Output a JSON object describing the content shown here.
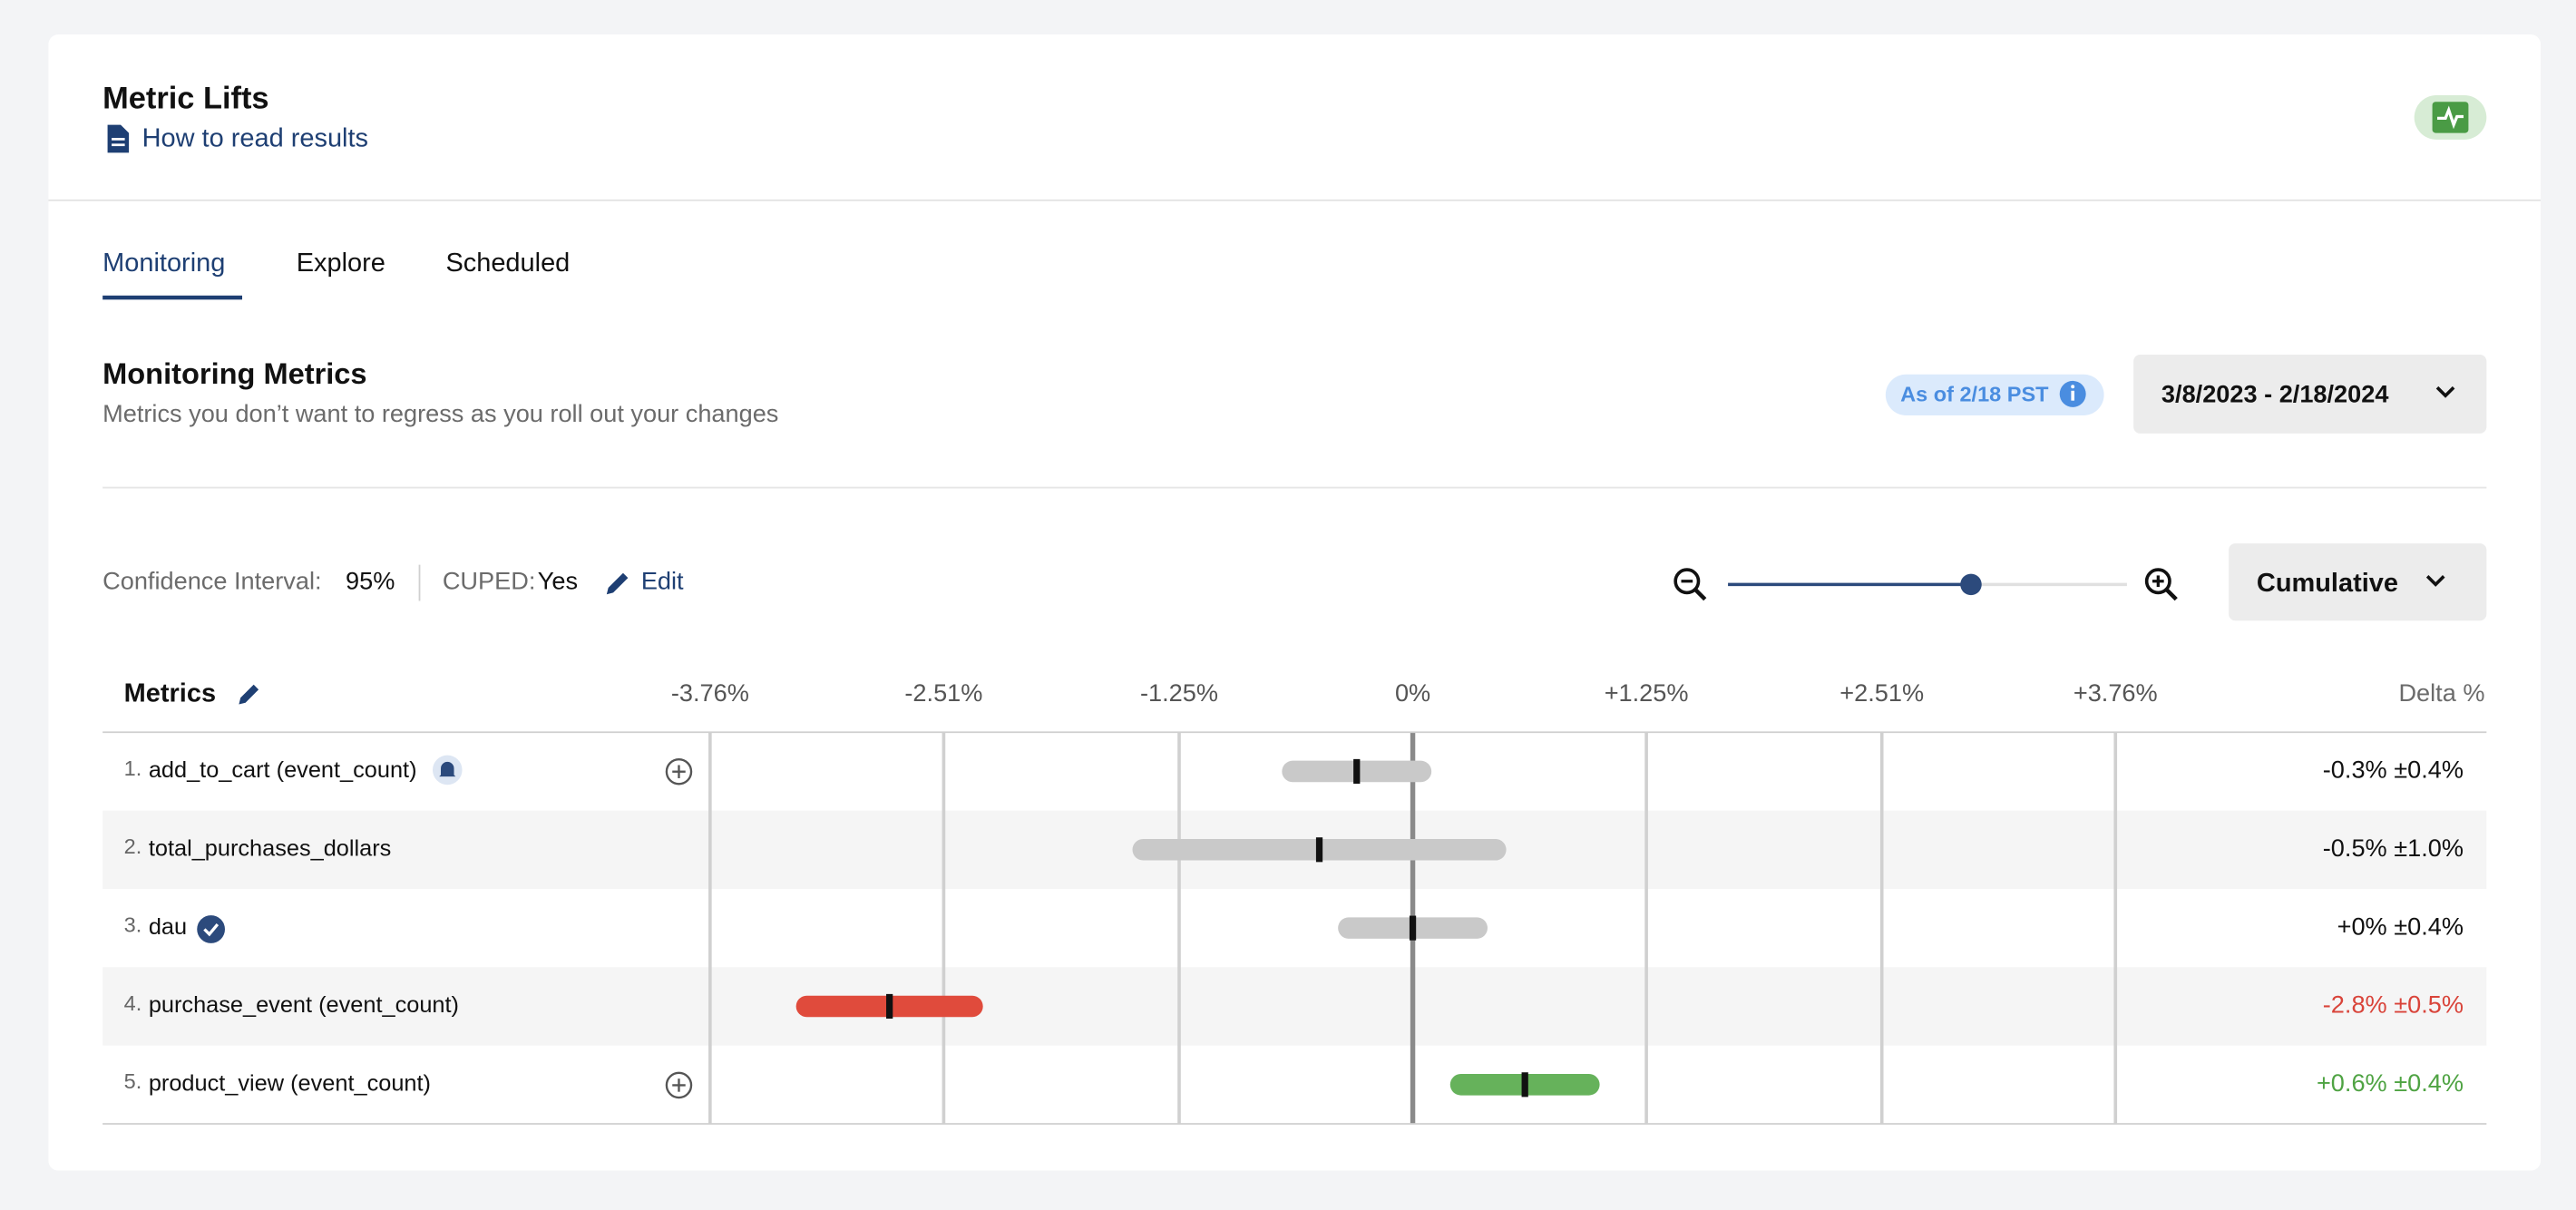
{
  "header": {
    "title": "Metric Lifts",
    "link": "How to read results"
  },
  "tabs": [
    "Monitoring",
    "Explore",
    "Scheduled"
  ],
  "section": {
    "title": "Monitoring Metrics",
    "subtitle": "Metrics you don’t want to regress as you roll out your changes",
    "as_of": "As of 2/18 PST",
    "date_range": "3/8/2023 - 2/18/2024"
  },
  "settings": {
    "ci_label": "Confidence Interval:",
    "ci_value": "95%",
    "cuped_label": "CUPED:",
    "cuped_value": "Yes",
    "edit": "Edit",
    "mode": "Cumulative"
  },
  "chart_data": {
    "type": "interval",
    "metrics_header": "Metrics",
    "delta_header": "Delta %",
    "xlim": [
      -3.76,
      3.76
    ],
    "xticks": [
      {
        "value": -3.76,
        "label": "-3.76%"
      },
      {
        "value": -2.51,
        "label": "-2.51%"
      },
      {
        "value": -1.25,
        "label": "-1.25%"
      },
      {
        "value": 0,
        "label": "0%"
      },
      {
        "value": 1.25,
        "label": "+1.25%"
      },
      {
        "value": 2.51,
        "label": "+2.51%"
      },
      {
        "value": 3.76,
        "label": "+3.76%"
      }
    ],
    "rows": [
      {
        "index": "1.",
        "name": "add_to_cart (event_count)",
        "delta": -0.3,
        "ci": 0.4,
        "label": "-0.3% ±0.4%",
        "color": "#c9c9c9",
        "label_color": "#111111"
      },
      {
        "index": "2.",
        "name": "total_purchases_dollars",
        "delta": -0.5,
        "ci": 1.0,
        "label": "-0.5% ±1.0%",
        "color": "#c9c9c9",
        "label_color": "#111111"
      },
      {
        "index": "3.",
        "name": "dau",
        "delta": 0,
        "ci": 0.4,
        "label": "+0% ±0.4%",
        "color": "#c9c9c9",
        "label_color": "#111111"
      },
      {
        "index": "4.",
        "name": "purchase_event (event_count)",
        "delta": -2.8,
        "ci": 0.5,
        "label": "-2.8% ±0.5%",
        "color": "#e04b3c",
        "label_color": "#d9443a"
      },
      {
        "index": "5.",
        "name": "product_view (event_count)",
        "delta": 0.6,
        "ci": 0.4,
        "label": "+0.6% ±0.4%",
        "color": "#66b25b",
        "label_color": "#4fa343"
      }
    ]
  }
}
